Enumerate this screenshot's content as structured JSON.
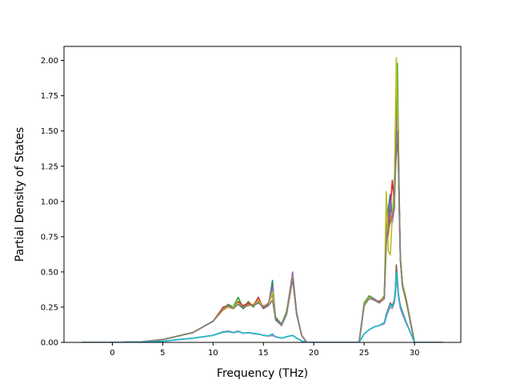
{
  "chart_data": {
    "type": "line",
    "title": "",
    "xlabel": "Frequency (THz)",
    "ylabel": "Partial Density of States",
    "xlim": [
      -4.8,
      34.6
    ],
    "ylim": [
      0.0,
      2.1
    ],
    "grid": false,
    "legend": "none",
    "x_ticks": [
      {
        "value": 0,
        "label": "0"
      },
      {
        "value": 5,
        "label": "5"
      },
      {
        "value": 10,
        "label": "10"
      },
      {
        "value": 15,
        "label": "15"
      },
      {
        "value": 20,
        "label": "20"
      },
      {
        "value": 25,
        "label": "25"
      },
      {
        "value": 30,
        "label": "30"
      }
    ],
    "y_ticks": [
      {
        "value": 0.0,
        "label": "0.00"
      },
      {
        "value": 0.25,
        "label": "0.25"
      },
      {
        "value": 0.5,
        "label": "0.50"
      },
      {
        "value": 0.75,
        "label": "0.75"
      },
      {
        "value": 1.0,
        "label": "1.00"
      },
      {
        "value": 1.25,
        "label": "1.25"
      },
      {
        "value": 1.5,
        "label": "1.50"
      },
      {
        "value": 1.75,
        "label": "1.75"
      },
      {
        "value": 2.0,
        "label": "2.00"
      }
    ],
    "series": [
      {
        "color": "#1f77b4",
        "x": [
          -3,
          0,
          3,
          5,
          8,
          10,
          11,
          11.5,
          12,
          12.5,
          13,
          13.5,
          14,
          14.5,
          15,
          15.5,
          15.9,
          16.2,
          16.8,
          17.3,
          17.9,
          18.3,
          18.8,
          19.3,
          24.5,
          25,
          25.5,
          26,
          26.5,
          27,
          27.2,
          27.4,
          27.6,
          27.8,
          28,
          28.1,
          28.2,
          28.3,
          28.4,
          28.5,
          28.6,
          28.8,
          29.2,
          29.6,
          30,
          32.8
        ],
        "y": [
          0,
          0,
          0.005,
          0.02,
          0.07,
          0.15,
          0.24,
          0.26,
          0.25,
          0.27,
          0.24,
          0.27,
          0.26,
          0.29,
          0.24,
          0.26,
          0.44,
          0.16,
          0.12,
          0.2,
          0.49,
          0.2,
          0.05,
          0,
          0,
          0.26,
          0.32,
          0.31,
          0.28,
          0.32,
          0.78,
          0.95,
          1.05,
          0.88,
          0.95,
          1.4,
          1.65,
          1.8,
          1.3,
          0.95,
          0.6,
          0.42,
          0.3,
          0.15,
          0,
          0
        ]
      },
      {
        "color": "#ff7f0e",
        "x": [
          -3,
          0,
          3,
          5,
          8,
          10,
          11,
          11.5,
          12,
          12.5,
          13,
          13.5,
          14,
          14.5,
          15,
          15.5,
          15.9,
          16.2,
          16.8,
          17.3,
          17.9,
          18.3,
          18.8,
          19.3,
          24.5,
          25,
          25.5,
          26,
          26.5,
          27,
          27.2,
          27.4,
          27.6,
          27.8,
          28,
          28.1,
          28.2,
          28.3,
          28.4,
          28.5,
          28.6,
          28.8,
          29.2,
          29.6,
          30,
          32.8
        ],
        "y": [
          0,
          0,
          0.005,
          0.02,
          0.07,
          0.15,
          0.23,
          0.25,
          0.24,
          0.28,
          0.25,
          0.26,
          0.27,
          0.28,
          0.26,
          0.27,
          0.38,
          0.17,
          0.12,
          0.21,
          0.46,
          0.21,
          0.05,
          0,
          0,
          0.27,
          0.33,
          0.3,
          0.29,
          0.31,
          0.85,
          0.75,
          0.9,
          0.85,
          1.0,
          1.3,
          1.5,
          1.75,
          1.5,
          0.9,
          0.58,
          0.4,
          0.28,
          0.14,
          0,
          0
        ]
      },
      {
        "color": "#2ca02c",
        "x": [
          -3,
          0,
          3,
          5,
          8,
          10,
          11,
          11.5,
          12,
          12.5,
          13,
          13.5,
          14,
          14.5,
          15,
          15.5,
          15.9,
          16.2,
          16.8,
          17.3,
          17.9,
          18.3,
          18.8,
          19.3,
          24.5,
          25,
          25.5,
          26,
          26.5,
          27,
          27.2,
          27.4,
          27.6,
          27.8,
          28,
          28.1,
          28.2,
          28.3,
          28.4,
          28.5,
          28.6,
          28.8,
          29.2,
          29.6,
          30,
          32.8
        ],
        "y": [
          0,
          0,
          0.005,
          0.02,
          0.07,
          0.15,
          0.24,
          0.27,
          0.25,
          0.32,
          0.24,
          0.29,
          0.25,
          0.3,
          0.25,
          0.27,
          0.42,
          0.18,
          0.13,
          0.22,
          0.48,
          0.2,
          0.05,
          0,
          0,
          0.28,
          0.33,
          0.31,
          0.28,
          0.33,
          0.8,
          0.9,
          1.0,
          0.9,
          1.1,
          1.5,
          1.7,
          1.98,
          1.45,
          1.0,
          0.6,
          0.42,
          0.3,
          0.15,
          0,
          0
        ]
      },
      {
        "color": "#d62728",
        "x": [
          -3,
          0,
          3,
          5,
          8,
          10,
          11,
          11.5,
          12,
          12.5,
          13,
          13.5,
          14,
          14.5,
          15,
          15.5,
          15.9,
          16.2,
          16.8,
          17.3,
          17.9,
          18.3,
          18.8,
          19.3,
          24.5,
          25,
          25.5,
          26,
          26.5,
          27,
          27.2,
          27.4,
          27.6,
          27.8,
          28,
          28.1,
          28.2,
          28.3,
          28.4,
          28.5,
          28.6,
          28.8,
          29.2,
          29.6,
          30,
          32.8
        ],
        "y": [
          0,
          0,
          0.005,
          0.02,
          0.07,
          0.15,
          0.25,
          0.26,
          0.24,
          0.29,
          0.26,
          0.28,
          0.26,
          0.32,
          0.24,
          0.28,
          0.34,
          0.17,
          0.12,
          0.2,
          0.45,
          0.2,
          0.05,
          0,
          0,
          0.27,
          0.32,
          0.3,
          0.29,
          0.32,
          0.72,
          0.8,
          0.95,
          1.15,
          1.0,
          1.2,
          1.35,
          1.43,
          1.3,
          0.92,
          0.6,
          0.41,
          0.29,
          0.15,
          0,
          0
        ]
      },
      {
        "color": "#9467bd",
        "x": [
          -3,
          0,
          3,
          5,
          8,
          10,
          11,
          11.5,
          12,
          12.5,
          13,
          13.5,
          14,
          14.5,
          15,
          15.5,
          15.9,
          16.2,
          16.8,
          17.3,
          17.9,
          18.3,
          18.8,
          19.3,
          24.5,
          25,
          25.5,
          26,
          26.5,
          27,
          27.2,
          27.4,
          27.6,
          27.8,
          28,
          28.1,
          28.2,
          28.3,
          28.4,
          28.5,
          28.6,
          28.8,
          29.2,
          29.6,
          30,
          32.8
        ],
        "y": [
          0,
          0,
          0.005,
          0.02,
          0.07,
          0.15,
          0.24,
          0.26,
          0.25,
          0.27,
          0.25,
          0.27,
          0.26,
          0.29,
          0.25,
          0.27,
          0.4,
          0.17,
          0.13,
          0.21,
          0.5,
          0.21,
          0.05,
          0,
          0,
          0.27,
          0.32,
          0.31,
          0.28,
          0.31,
          0.78,
          0.85,
          1.0,
          0.85,
          0.95,
          1.3,
          1.55,
          1.6,
          1.35,
          0.93,
          0.6,
          0.42,
          0.3,
          0.15,
          0,
          0
        ]
      },
      {
        "color": "#bcbd22",
        "x": [
          -3,
          0,
          3,
          5,
          8,
          10,
          11,
          11.5,
          12,
          12.5,
          13,
          13.5,
          14,
          14.5,
          15,
          15.5,
          15.9,
          16.2,
          16.8,
          17.3,
          17.9,
          18.3,
          18.8,
          19.3,
          24.5,
          25,
          25.5,
          26,
          26.5,
          27,
          27.2,
          27.4,
          27.6,
          27.8,
          28,
          28.1,
          28.2,
          28.3,
          28.4,
          28.5,
          28.6,
          28.8,
          29.2,
          29.6,
          30,
          32.8
        ],
        "y": [
          0,
          0,
          0.005,
          0.02,
          0.07,
          0.15,
          0.24,
          0.25,
          0.25,
          0.28,
          0.25,
          0.27,
          0.26,
          0.3,
          0.25,
          0.26,
          0.36,
          0.17,
          0.12,
          0.21,
          0.47,
          0.2,
          0.05,
          0,
          0,
          0.27,
          0.32,
          0.3,
          0.28,
          0.32,
          1.07,
          0.65,
          0.62,
          0.9,
          1.05,
          1.55,
          2.02,
          1.7,
          1.3,
          0.95,
          0.6,
          0.42,
          0.3,
          0.15,
          0,
          0
        ]
      },
      {
        "color": "#7f7f7f",
        "x": [
          -3,
          0,
          3,
          5,
          8,
          10,
          11,
          11.5,
          12,
          12.5,
          13,
          13.5,
          14,
          14.5,
          15,
          15.5,
          15.9,
          16.2,
          16.8,
          17.3,
          17.9,
          18.3,
          18.8,
          19.3,
          24.5,
          25,
          25.5,
          26,
          26.5,
          27,
          27.2,
          27.4,
          27.6,
          27.8,
          28,
          28.1,
          28.2,
          28.3,
          28.4,
          28.5,
          28.6,
          28.8,
          29.2,
          29.6,
          30,
          32.8
        ],
        "y": [
          0,
          0,
          0.005,
          0.02,
          0.07,
          0.15,
          0.24,
          0.26,
          0.24,
          0.27,
          0.25,
          0.27,
          0.26,
          0.28,
          0.25,
          0.26,
          0.3,
          0.17,
          0.12,
          0.2,
          0.46,
          0.2,
          0.05,
          0,
          0,
          0.26,
          0.31,
          0.3,
          0.28,
          0.31,
          0.7,
          0.8,
          0.85,
          0.9,
          0.95,
          1.2,
          1.45,
          1.5,
          1.25,
          0.9,
          0.58,
          0.4,
          0.29,
          0.14,
          0,
          0
        ]
      },
      {
        "color": "#8c564b",
        "x": [
          -3,
          0,
          3,
          5,
          8,
          10,
          11,
          11.5,
          12,
          12.5,
          13,
          13.5,
          14,
          14.5,
          15,
          15.5,
          15.9,
          16.2,
          16.8,
          17.3,
          17.9,
          18.3,
          18.8,
          19.3,
          24.5,
          25,
          25.5,
          26,
          26.5,
          27,
          27.2,
          27.4,
          27.6,
          27.8,
          28,
          28.1,
          28.2,
          28.3,
          28.4,
          28.5,
          28.6,
          28.8,
          29.2,
          29.6,
          30,
          32.8
        ],
        "y": [
          0,
          0,
          0.002,
          0.008,
          0.03,
          0.05,
          0.075,
          0.08,
          0.07,
          0.08,
          0.065,
          0.07,
          0.065,
          0.06,
          0.05,
          0.045,
          0.05,
          0.04,
          0.03,
          0.04,
          0.05,
          0.03,
          0.01,
          0,
          0,
          0.06,
          0.09,
          0.11,
          0.12,
          0.14,
          0.2,
          0.24,
          0.28,
          0.26,
          0.3,
          0.38,
          0.55,
          0.45,
          0.35,
          0.3,
          0.26,
          0.22,
          0.14,
          0.07,
          0,
          0
        ]
      },
      {
        "color": "#e377c2",
        "x": [
          -3,
          0,
          3,
          5,
          8,
          10,
          11,
          11.5,
          12,
          12.5,
          13,
          13.5,
          14,
          14.5,
          15,
          15.5,
          15.9,
          16.2,
          16.8,
          17.3,
          17.9,
          18.3,
          18.8,
          19.3,
          24.5,
          25,
          25.5,
          26,
          26.5,
          27,
          27.2,
          27.4,
          27.6,
          27.8,
          28,
          28.1,
          28.2,
          28.3,
          28.4,
          28.5,
          28.6,
          28.8,
          29.2,
          29.6,
          30,
          32.8
        ],
        "y": [
          0,
          0,
          0.002,
          0.008,
          0.03,
          0.05,
          0.072,
          0.075,
          0.07,
          0.075,
          0.065,
          0.068,
          0.062,
          0.058,
          0.05,
          0.045,
          0.048,
          0.04,
          0.03,
          0.04,
          0.05,
          0.03,
          0.01,
          0,
          0,
          0.06,
          0.09,
          0.11,
          0.12,
          0.13,
          0.18,
          0.22,
          0.25,
          0.24,
          0.28,
          0.33,
          0.45,
          0.4,
          0.33,
          0.28,
          0.24,
          0.2,
          0.13,
          0.07,
          0,
          0
        ]
      },
      {
        "color": "#17becf",
        "x": [
          -3,
          0,
          3,
          5,
          8,
          10,
          11,
          11.5,
          12,
          12.5,
          13,
          13.5,
          14,
          14.5,
          15,
          15.5,
          15.9,
          16.2,
          16.8,
          17.3,
          17.9,
          18.3,
          18.8,
          19.3,
          24.5,
          25,
          25.5,
          26,
          26.5,
          27,
          27.2,
          27.4,
          27.6,
          27.8,
          28,
          28.1,
          28.2,
          28.3,
          28.4,
          28.5,
          28.6,
          28.8,
          29.2,
          29.6,
          30,
          32.8
        ],
        "y": [
          0,
          0,
          0.002,
          0.008,
          0.03,
          0.05,
          0.073,
          0.078,
          0.068,
          0.078,
          0.066,
          0.07,
          0.064,
          0.06,
          0.05,
          0.046,
          0.06,
          0.04,
          0.03,
          0.04,
          0.05,
          0.03,
          0.01,
          0,
          0,
          0.06,
          0.09,
          0.11,
          0.12,
          0.14,
          0.19,
          0.23,
          0.27,
          0.25,
          0.29,
          0.36,
          0.5,
          0.43,
          0.34,
          0.29,
          0.25,
          0.21,
          0.14,
          0.07,
          0,
          0
        ]
      }
    ]
  }
}
